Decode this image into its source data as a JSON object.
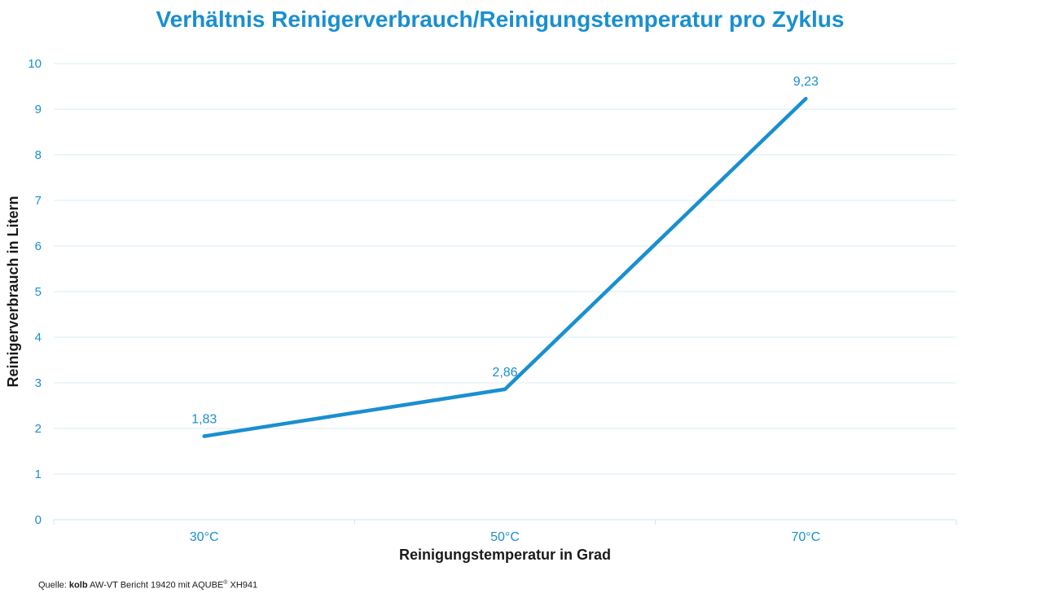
{
  "chart_data": {
    "type": "line",
    "title": "Verhältnis Reinigerverbrauch/Reinigungstemperatur pro Zyklus",
    "xlabel": "Reinigungstemperatur in Grad",
    "ylabel": "Reinigerverbrauch in Litern",
    "categories": [
      "30°C",
      "50°C",
      "70°C"
    ],
    "series": [
      {
        "values": [
          1.83,
          2.86,
          9.23
        ],
        "data_labels": [
          "1,83",
          "2,86",
          "9,23"
        ]
      }
    ],
    "ylim": [
      0,
      10
    ],
    "yticks": [
      "0",
      "1",
      "2",
      "3",
      "4",
      "5",
      "6",
      "7",
      "8",
      "9",
      "10"
    ],
    "grid": true,
    "legend": "none",
    "colors": {
      "line": "#1a8fd0",
      "text": "#1a8fd0",
      "grid": "#d6ecf6",
      "axis_title": "#1a1a1a"
    }
  },
  "source": {
    "prefix": "Quelle:",
    "brand": "kolb",
    "text": "AW-VT Bericht 19420 mit AQUBE",
    "reg": "®",
    "suffix": "XH941"
  }
}
